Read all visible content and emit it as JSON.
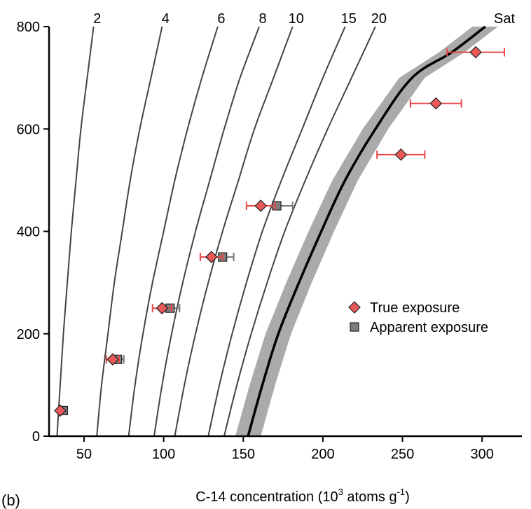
{
  "panel_label": "(b)",
  "chart_data": {
    "type": "scatter",
    "title": "",
    "xlabel": {
      "prefix": "C-14 concentration (10",
      "sup1": "3",
      "mid": " atoms g",
      "sup2": "-1",
      "suffix": ")"
    },
    "ylabel": "",
    "xlim": [
      28,
      325
    ],
    "ylim": [
      0,
      800
    ],
    "xticks": [
      50,
      100,
      150,
      200,
      250,
      300
    ],
    "yticks": [
      0,
      200,
      400,
      600,
      800
    ],
    "grid": false,
    "legend_position": "right",
    "curves": [
      {
        "label": "2",
        "points": [
          [
            33,
            0
          ],
          [
            35,
            100
          ],
          [
            37,
            200
          ],
          [
            39.5,
            300
          ],
          [
            42,
            400
          ],
          [
            45,
            500
          ],
          [
            48,
            600
          ],
          [
            52,
            700
          ],
          [
            56,
            800
          ]
        ]
      },
      {
        "label": "4",
        "points": [
          [
            58,
            0
          ],
          [
            61,
            100
          ],
          [
            65,
            200
          ],
          [
            69,
            300
          ],
          [
            74,
            400
          ],
          [
            79,
            500
          ],
          [
            85,
            600
          ],
          [
            92,
            700
          ],
          [
            99,
            800
          ]
        ]
      },
      {
        "label": "6",
        "points": [
          [
            78,
            0
          ],
          [
            82,
            100
          ],
          [
            87,
            200
          ],
          [
            93,
            300
          ],
          [
            100,
            400
          ],
          [
            107,
            500
          ],
          [
            115,
            600
          ],
          [
            124,
            700
          ],
          [
            134,
            800
          ]
        ]
      },
      {
        "label": "8",
        "points": [
          [
            94,
            0
          ],
          [
            99,
            100
          ],
          [
            105,
            200
          ],
          [
            112,
            300
          ],
          [
            120,
            400
          ],
          [
            129,
            500
          ],
          [
            138,
            600
          ],
          [
            148,
            700
          ],
          [
            160,
            800
          ]
        ]
      },
      {
        "label": "10",
        "points": [
          [
            107,
            0
          ],
          [
            113,
            100
          ],
          [
            120,
            200
          ],
          [
            128,
            300
          ],
          [
            137,
            400
          ],
          [
            147,
            500
          ],
          [
            157,
            600
          ],
          [
            169,
            700
          ],
          [
            181,
            800
          ]
        ]
      },
      {
        "label": "15",
        "points": [
          [
            128,
            0
          ],
          [
            135,
            100
          ],
          [
            143,
            200
          ],
          [
            152,
            300
          ],
          [
            162,
            400
          ],
          [
            174,
            500
          ],
          [
            187,
            600
          ],
          [
            200,
            700
          ],
          [
            214,
            800
          ]
        ]
      },
      {
        "label": "20",
        "points": [
          [
            138,
            0
          ],
          [
            146,
            100
          ],
          [
            155,
            200
          ],
          [
            165,
            300
          ],
          [
            176,
            400
          ],
          [
            189,
            500
          ],
          [
            203,
            600
          ],
          [
            218,
            700
          ],
          [
            233,
            800
          ]
        ]
      }
    ],
    "saturation": {
      "label": "Sat",
      "points": [
        [
          153,
          0
        ],
        [
          162,
          100
        ],
        [
          172,
          200
        ],
        [
          185,
          300
        ],
        [
          199,
          400
        ],
        [
          214,
          500
        ],
        [
          233,
          600
        ],
        [
          256,
          700
        ],
        [
          281,
          750
        ],
        [
          302,
          800
        ]
      ],
      "band_halfwidth": 8,
      "line_color": "#000000",
      "band_color": "#aaaaaa"
    },
    "series": [
      {
        "name": "True exposure",
        "marker": "diamond",
        "color": "#e85858",
        "edge_color": "#222222",
        "errorbar_color": "#e84848",
        "points": [
          {
            "x": 35,
            "y": 50,
            "xerr": 0
          },
          {
            "x": 68,
            "y": 150,
            "xerr": 4
          },
          {
            "x": 99,
            "y": 250,
            "xerr": 6
          },
          {
            "x": 130,
            "y": 350,
            "xerr": 7
          },
          {
            "x": 161,
            "y": 450,
            "xerr": 9
          },
          {
            "x": 249,
            "y": 550,
            "xerr": 15
          },
          {
            "x": 271,
            "y": 650,
            "xerr": 16
          },
          {
            "x": 296,
            "y": 750,
            "xerr": 18
          }
        ]
      },
      {
        "name": "Apparent exposure",
        "marker": "square",
        "color": "#7d7d7d",
        "edge_color": "#222222",
        "errorbar_color": "#777777",
        "points": [
          {
            "x": 37,
            "y": 50,
            "xerr": 0
          },
          {
            "x": 71,
            "y": 150,
            "xerr": 4
          },
          {
            "x": 104,
            "y": 250,
            "xerr": 6
          },
          {
            "x": 137,
            "y": 350,
            "xerr": 7
          },
          {
            "x": 171,
            "y": 450,
            "xerr": 10
          }
        ]
      }
    ]
  }
}
